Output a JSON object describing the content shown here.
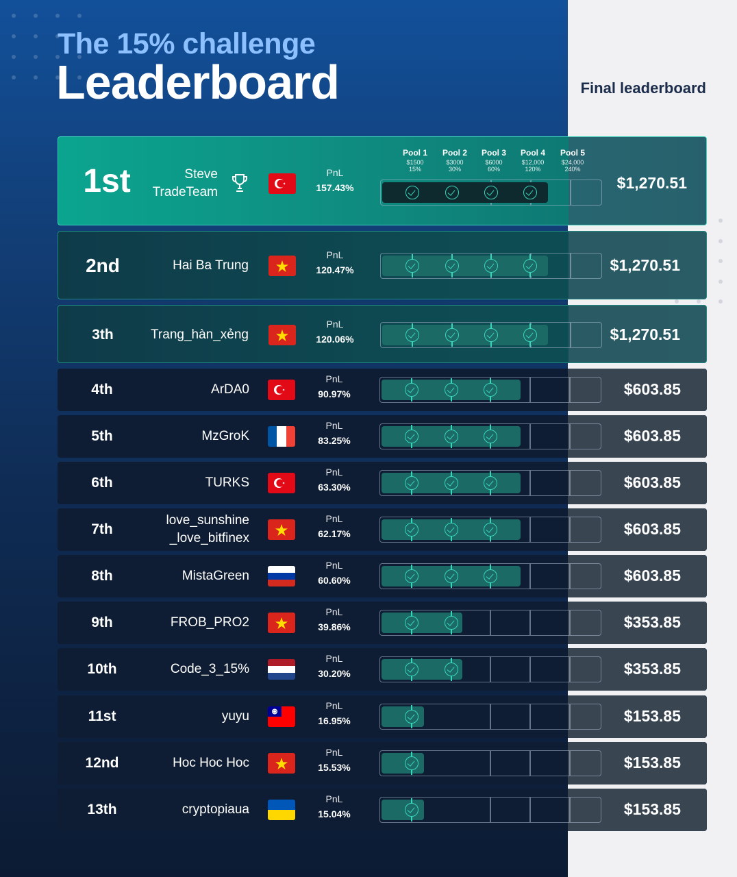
{
  "header": {
    "subtitle": "The 15% challenge",
    "title": "Leaderboard",
    "final_label": "Final leaderboard"
  },
  "pools": [
    {
      "name": "Pool 1",
      "amount": "$1500",
      "pct": "15%"
    },
    {
      "name": "Pool 2",
      "amount": "$3000",
      "pct": "30%"
    },
    {
      "name": "Pool 3",
      "amount": "$6000",
      "pct": "60%"
    },
    {
      "name": "Pool 4",
      "amount": "$12,000",
      "pct": "120%"
    },
    {
      "name": "Pool 5",
      "amount": "$24,000",
      "pct": "240%"
    }
  ],
  "pnl_label": "PnL",
  "rows": [
    {
      "rank": "1st",
      "name": "Steve\nTradeTeam",
      "flag": "turkey",
      "pnl": "157.43%",
      "pools_completed": 4,
      "prize": "$1,270.51"
    },
    {
      "rank": "2nd",
      "name": "Hai Ba Trung",
      "flag": "vietnam",
      "pnl": "120.47%",
      "pools_completed": 4,
      "prize": "$1,270.51"
    },
    {
      "rank": "3th",
      "name": "Trang_hàn_xẻng",
      "flag": "vietnam",
      "pnl": "120.06%",
      "pools_completed": 4,
      "prize": "$1,270.51"
    },
    {
      "rank": "4th",
      "name": "ArDA0",
      "flag": "turkey",
      "pnl": "90.97%",
      "pools_completed": 3,
      "prize": "$603.85"
    },
    {
      "rank": "5th",
      "name": "MzGroK",
      "flag": "france",
      "pnl": "83.25%",
      "pools_completed": 3,
      "prize": "$603.85"
    },
    {
      "rank": "6th",
      "name": "TURKS",
      "flag": "turkey",
      "pnl": "63.30%",
      "pools_completed": 3,
      "prize": "$603.85"
    },
    {
      "rank": "7th",
      "name": "love_sunshine\n_love_bitfinex",
      "flag": "vietnam",
      "pnl": "62.17%",
      "pools_completed": 3,
      "prize": "$603.85"
    },
    {
      "rank": "8th",
      "name": "MistaGreen",
      "flag": "russia",
      "pnl": "60.60%",
      "pools_completed": 3,
      "prize": "$603.85"
    },
    {
      "rank": "9th",
      "name": "FROB_PRO2",
      "flag": "vietnam",
      "pnl": "39.86%",
      "pools_completed": 2,
      "prize": "$353.85"
    },
    {
      "rank": "10th",
      "name": "Code_3_15%",
      "flag": "netherlands",
      "pnl": "30.20%",
      "pools_completed": 2,
      "prize": "$353.85"
    },
    {
      "rank": "11st",
      "name": "yuyu",
      "flag": "taiwan",
      "pnl": "16.95%",
      "pools_completed": 1,
      "prize": "$153.85"
    },
    {
      "rank": "12nd",
      "name": "Hoc Hoc Hoc",
      "flag": "vietnam",
      "pnl": "15.53%",
      "pools_completed": 1,
      "prize": "$153.85"
    },
    {
      "rank": "13th",
      "name": "cryptopiaua",
      "flag": "ukraine",
      "pnl": "15.04%",
      "pools_completed": 1,
      "prize": "$153.85"
    }
  ],
  "colors": {
    "accent_teal": "#39d6bc",
    "first_row": "#0ba58f",
    "dark_row": "#0e1d33",
    "light_panel": "#f1f1f3"
  }
}
